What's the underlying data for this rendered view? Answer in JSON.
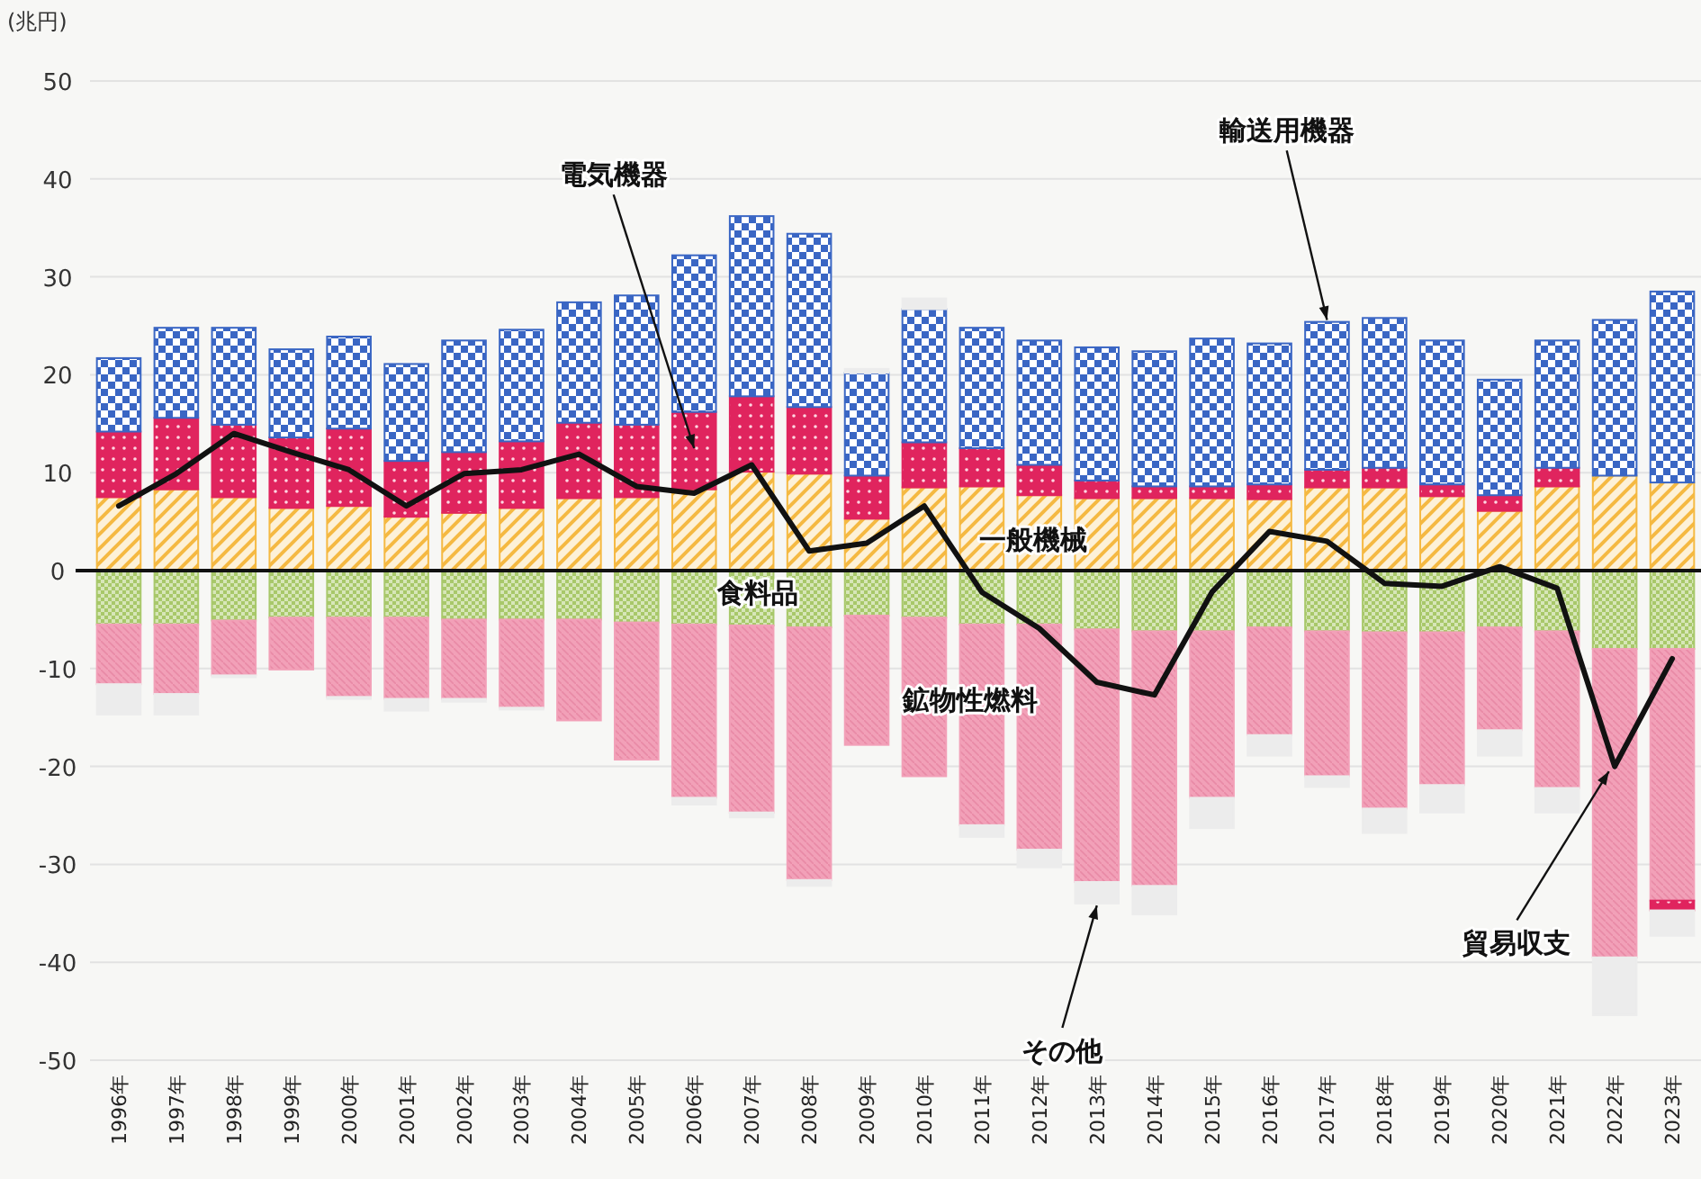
{
  "chart_data": {
    "type": "bar",
    "stacked": true,
    "ylabel": "(兆円)",
    "ylim": [
      -50,
      50
    ],
    "yticks": [
      -50,
      -40,
      -30,
      -20,
      -10,
      0,
      10,
      20,
      30,
      40,
      50
    ],
    "grid": "y",
    "categories": [
      "1996年",
      "1997年",
      "1998年",
      "1999年",
      "2000年",
      "2001年",
      "2002年",
      "2003年",
      "2004年",
      "2005年",
      "2006年",
      "2007年",
      "2008年",
      "2009年",
      "2010年",
      "2011年",
      "2012年",
      "2013年",
      "2014年",
      "2015年",
      "2016年",
      "2017年",
      "2018年",
      "2019年",
      "2020年",
      "2021年",
      "2022年",
      "2023年"
    ],
    "series": [
      {
        "name": "一般機械",
        "color": "#f5b942",
        "values": [
          7.5,
          8.3,
          7.5,
          6.4,
          6.6,
          5.5,
          5.9,
          6.4,
          7.4,
          7.5,
          8.3,
          10.1,
          9.9,
          5.3,
          8.5,
          8.6,
          7.7,
          7.4,
          7.4,
          7.4,
          7.3,
          8.5,
          8.5,
          7.6,
          6.1,
          8.6,
          9.7,
          9.0
        ]
      },
      {
        "name": "食料品",
        "color": "#a8c86a",
        "values": [
          -5.5,
          -5.5,
          -5.1,
          -4.8,
          -4.8,
          -4.8,
          -5.0,
          -5.0,
          -5.0,
          -5.3,
          -5.5,
          -5.6,
          -5.8,
          -4.6,
          -4.8,
          -5.5,
          -5.5,
          -6.0,
          -6.2,
          -6.2,
          -5.8,
          -6.2,
          -6.3,
          -6.3,
          -5.8,
          -6.2,
          -8.0,
          -8.0
        ]
      },
      {
        "name": "鉱物性燃料",
        "color": "#f2a0b8",
        "values": [
          -6.1,
          -7.1,
          -5.6,
          -5.3,
          -8.1,
          -8.3,
          -8.1,
          -9.0,
          -10.3,
          -14.0,
          -17.7,
          -19.1,
          -25.8,
          -13.2,
          -16.2,
          -20.5,
          -23.0,
          -25.8,
          -26.0,
          -17.0,
          -11.0,
          -14.8,
          -18.0,
          -15.6,
          -10.5,
          -16.0,
          -31.5,
          -25.7
        ]
      },
      {
        "name": "電気機器",
        "color": "#e0245e",
        "values": [
          6.7,
          7.3,
          7.4,
          7.2,
          7.9,
          5.7,
          6.2,
          6.8,
          7.7,
          7.4,
          7.9,
          7.7,
          6.8,
          4.4,
          4.6,
          3.9,
          3.1,
          1.8,
          1.2,
          1.2,
          1.5,
          1.8,
          2.0,
          1.2,
          1.6,
          1.9,
          null,
          -1.0
        ]
      },
      {
        "name": "輸送用機器",
        "color": "#3a66c4",
        "values": [
          7.5,
          9.2,
          9.9,
          9.0,
          9.4,
          9.9,
          11.4,
          11.4,
          12.3,
          13.2,
          16.0,
          18.4,
          17.7,
          10.5,
          13.6,
          12.3,
          12.7,
          13.6,
          13.8,
          15.1,
          14.4,
          15.1,
          15.3,
          14.7,
          11.8,
          13.0,
          15.9,
          19.5
        ]
      },
      {
        "name": "その他",
        "color": "#ececec",
        "values": [
          -3.1,
          -2.1,
          -0.2,
          null,
          -0.2,
          -1.2,
          -0.3,
          -0.2,
          null,
          null,
          -0.7,
          -0.5,
          -0.6,
          0.4,
          1.1,
          -1.2,
          -1.8,
          -2.2,
          -2.9,
          -3.1,
          -2.1,
          -1.1,
          -2.5,
          -2.8,
          -2.6,
          -2.5,
          -5.9,
          -2.6
        ]
      },
      {
        "name": "貿易収支",
        "type": "line",
        "color": "#111111",
        "values": [
          6.6,
          9.9,
          14.0,
          12.1,
          10.3,
          6.6,
          9.9,
          10.3,
          11.9,
          8.6,
          7.9,
          10.8,
          2.0,
          2.8,
          6.6,
          -2.2,
          -5.9,
          -11.4,
          -12.7,
          -2.2,
          4.0,
          3.0,
          -1.3,
          -1.6,
          0.4,
          -1.8,
          -20.0,
          -9.0
        ]
      }
    ]
  }
}
